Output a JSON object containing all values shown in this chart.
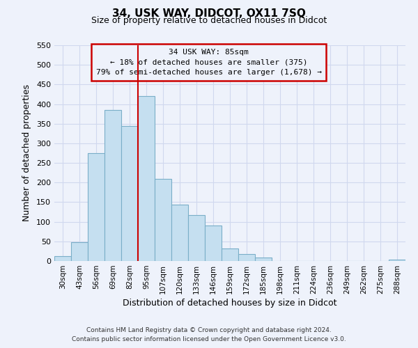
{
  "title": "34, USK WAY, DIDCOT, OX11 7SQ",
  "subtitle": "Size of property relative to detached houses in Didcot",
  "xlabel": "Distribution of detached houses by size in Didcot",
  "ylabel": "Number of detached properties",
  "bin_labels": [
    "30sqm",
    "43sqm",
    "56sqm",
    "69sqm",
    "82sqm",
    "95sqm",
    "107sqm",
    "120sqm",
    "133sqm",
    "146sqm",
    "159sqm",
    "172sqm",
    "185sqm",
    "198sqm",
    "211sqm",
    "224sqm",
    "236sqm",
    "249sqm",
    "262sqm",
    "275sqm",
    "288sqm"
  ],
  "bar_values": [
    12,
    48,
    275,
    385,
    345,
    420,
    210,
    143,
    117,
    90,
    32,
    18,
    8,
    0,
    0,
    0,
    0,
    0,
    0,
    0,
    3
  ],
  "bar_color": "#c5dff0",
  "bar_edge_color": "#7aaec8",
  "vline_x": 4.5,
  "vline_color": "#cc0000",
  "annotation_line1": "34 USK WAY: 85sqm",
  "annotation_line2": "← 18% of detached houses are smaller (375)",
  "annotation_line3": "79% of semi-detached houses are larger (1,678) →",
  "box_edge_color": "#cc0000",
  "ylim": [
    0,
    550
  ],
  "yticks": [
    0,
    50,
    100,
    150,
    200,
    250,
    300,
    350,
    400,
    450,
    500,
    550
  ],
  "footer_line1": "Contains HM Land Registry data © Crown copyright and database right 2024.",
  "footer_line2": "Contains public sector information licensed under the Open Government Licence v3.0.",
  "background_color": "#eef2fb",
  "grid_color": "#d0d8ee"
}
